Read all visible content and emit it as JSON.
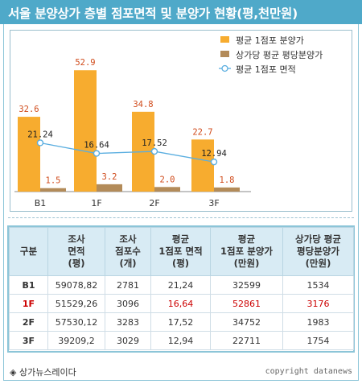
{
  "title": "서울 분양상가 층별 점포면적 및 분양가 현황(평,천만원)",
  "chart_data": {
    "type": "bar",
    "categories": [
      "B1",
      "1F",
      "2F",
      "3F"
    ],
    "series": [
      {
        "name": "평균 1점포 분양가",
        "kind": "bar",
        "color": "#f7ac2f",
        "values": [
          32.6,
          52.9,
          34.8,
          22.7
        ],
        "labels": [
          "32.6",
          "52.9",
          "34.8",
          "22.7"
        ]
      },
      {
        "name": "상가당 평균 평당분양가",
        "kind": "bar",
        "color": "#b38b59",
        "values": [
          1.5,
          3.2,
          2.0,
          1.8
        ],
        "labels": [
          "1.5",
          "3.2",
          "2.0",
          "1.8"
        ]
      },
      {
        "name": "평균 1점포 면적",
        "kind": "line",
        "color": "#5aaee0",
        "values": [
          21.24,
          16.64,
          17.52,
          12.94
        ],
        "labels": [
          "21.24",
          "16.64",
          "17.52",
          "12.94"
        ]
      }
    ],
    "ylim": [
      0,
      60
    ],
    "grid": false,
    "legend_position": "top-right",
    "colors": {
      "bar_label": "#d04a1a",
      "line_label": "#222222"
    }
  },
  "table": {
    "headers": [
      [
        "구분"
      ],
      [
        "조사",
        "면적",
        "(평)"
      ],
      [
        "조사",
        "점포수",
        "(개)"
      ],
      [
        "평균",
        "1점포 면적",
        "(평)"
      ],
      [
        "평균",
        "1점포 분양가",
        "(만원)"
      ],
      [
        "상가당 평균",
        "평당분양가",
        "(만원)"
      ]
    ],
    "rows": [
      {
        "highlight": false,
        "cells": [
          "B1",
          "59078,82",
          "2781",
          "21,24",
          "32599",
          "1534"
        ]
      },
      {
        "highlight": true,
        "cells": [
          "1F",
          "51529,26",
          "3096",
          "16,64",
          "52861",
          "3176"
        ]
      },
      {
        "highlight": false,
        "cells": [
          "2F",
          "57530,12",
          "3283",
          "17,52",
          "34752",
          "1983"
        ]
      },
      {
        "highlight": false,
        "cells": [
          "3F",
          "39209,2",
          "3029",
          "12,94",
          "22711",
          "1754"
        ]
      }
    ]
  },
  "footer": {
    "source": "◈ 상가뉴스레이다",
    "copyright": "copyright datanews"
  }
}
